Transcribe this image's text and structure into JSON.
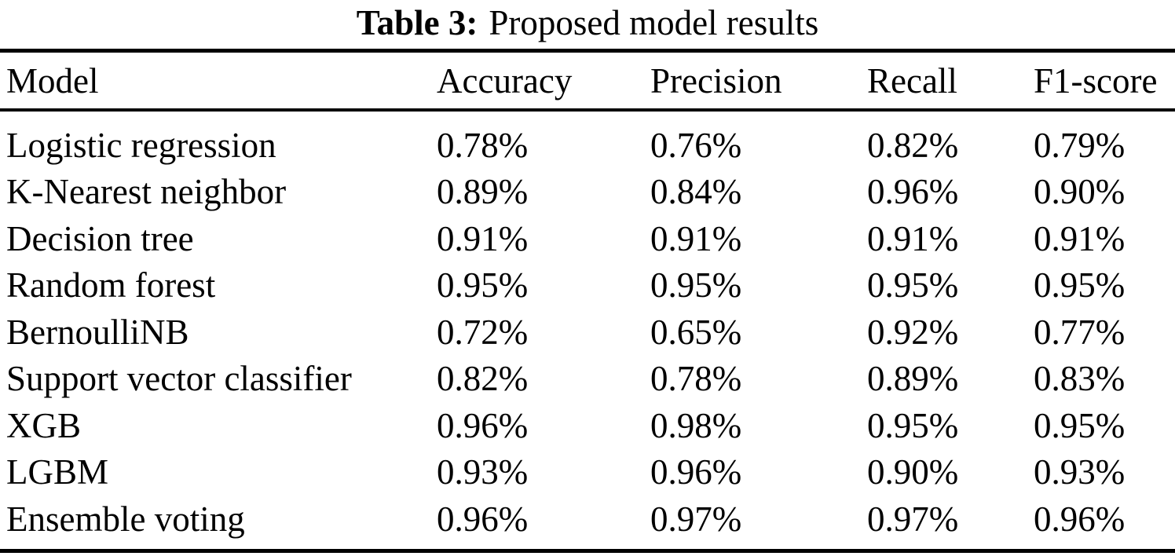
{
  "page": {
    "background_color": "#ffffff",
    "text_color": "#000000"
  },
  "caption": {
    "label": "Table 3:",
    "title": "Proposed model results"
  },
  "table": {
    "headers": {
      "model": "Model",
      "accuracy": "Accuracy",
      "precision": "Precision",
      "recall": "Recall",
      "f1": "F1-score"
    },
    "rows": [
      {
        "model": "Logistic regression",
        "accuracy": "0.78%",
        "precision": "0.76%",
        "recall": "0.82%",
        "f1": "0.79%"
      },
      {
        "model": "K-Nearest neighbor",
        "accuracy": "0.89%",
        "precision": "0.84%",
        "recall": "0.96%",
        "f1": "0.90%"
      },
      {
        "model": "Decision tree",
        "accuracy": "0.91%",
        "precision": "0.91%",
        "recall": "0.91%",
        "f1": "0.91%"
      },
      {
        "model": "Random forest",
        "accuracy": "0.95%",
        "precision": "0.95%",
        "recall": "0.95%",
        "f1": "0.95%"
      },
      {
        "model": "BernoulliNB",
        "accuracy": "0.72%",
        "precision": "0.65%",
        "recall": "0.92%",
        "f1": "0.77%"
      },
      {
        "model": "Support vector classifier",
        "accuracy": "0.82%",
        "precision": "0.78%",
        "recall": "0.89%",
        "f1": "0.83%"
      },
      {
        "model": "XGB",
        "accuracy": "0.96%",
        "precision": "0.98%",
        "recall": "0.95%",
        "f1": "0.95%"
      },
      {
        "model": "LGBM",
        "accuracy": "0.93%",
        "precision": "0.96%",
        "recall": "0.90%",
        "f1": "0.93%"
      },
      {
        "model": "Ensemble voting",
        "accuracy": "0.96%",
        "precision": "0.97%",
        "recall": "0.97%",
        "f1": "0.96%"
      }
    ]
  }
}
